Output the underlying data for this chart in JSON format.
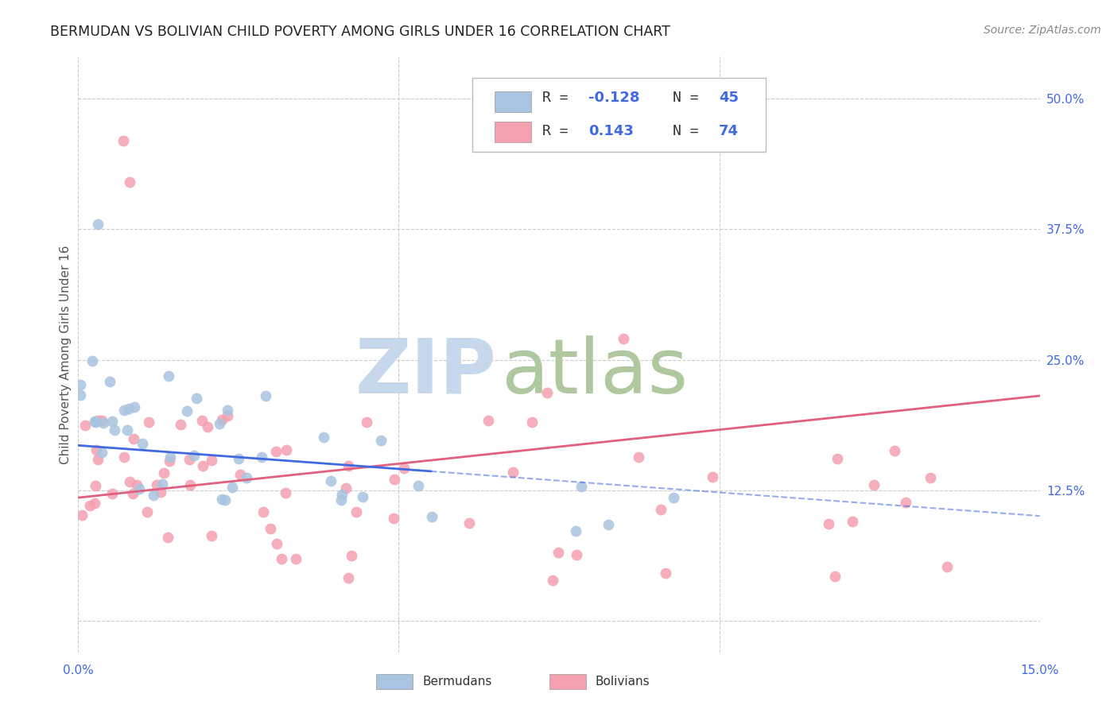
{
  "title": "BERMUDAN VS BOLIVIAN CHILD POVERTY AMONG GIRLS UNDER 16 CORRELATION CHART",
  "source": "Source: ZipAtlas.com",
  "ylabel": "Child Poverty Among Girls Under 16",
  "xlim": [
    0.0,
    0.15
  ],
  "ylim": [
    -0.03,
    0.54
  ],
  "yticks_right": [
    0.5,
    0.375,
    0.25,
    0.125,
    0.0
  ],
  "ytick_labels_right": [
    "50.0%",
    "37.5%",
    "25.0%",
    "12.5%",
    ""
  ],
  "legend_r_bermuda": "-0.128",
  "legend_n_bermuda": "45",
  "legend_r_bolivia": "0.143",
  "legend_n_bolivia": "74",
  "bermuda_color": "#a8c4e0",
  "bolivia_color": "#f4a0b0",
  "bermuda_line_color": "#4169e1",
  "bolivia_line_color": "#e06080",
  "background_color": "#ffffff",
  "grid_color": "#cccccc",
  "title_color": "#222222",
  "source_color": "#888888",
  "axis_label_color": "#555555",
  "tick_label_color": "#4169e1",
  "watermark_zip_color": "#c8d8ec",
  "watermark_atlas_color": "#b0c8a0"
}
